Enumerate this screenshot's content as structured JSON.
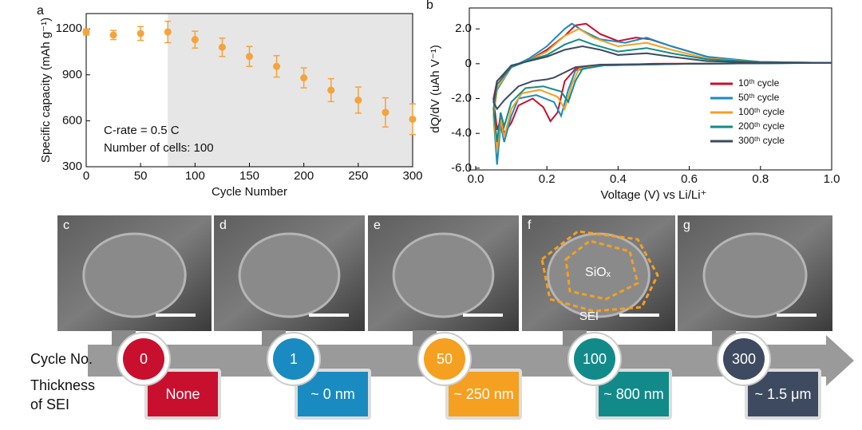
{
  "chart_data": [
    {
      "type": "scatter",
      "panel": "a",
      "xlabel": "Cycle Number",
      "ylabel": "Specific capacity (mAh g⁻¹)",
      "annotations": [
        "C-rate = 0.5 C",
        "Number of cells: 100"
      ],
      "x": [
        0,
        25,
        50,
        75,
        100,
        125,
        150,
        175,
        200,
        225,
        250,
        275,
        300
      ],
      "values": [
        1180,
        1160,
        1170,
        1180,
        1130,
        1080,
        1020,
        955,
        880,
        800,
        735,
        655,
        610
      ],
      "errors": [
        20,
        30,
        45,
        70,
        55,
        60,
        65,
        70,
        65,
        75,
        85,
        95,
        100
      ],
      "color": "#f5a33a",
      "shade_from": 75,
      "xlim": [
        0,
        300
      ],
      "xticks": [
        0,
        50,
        100,
        150,
        200,
        250,
        300
      ],
      "ylim": [
        300,
        1300
      ],
      "yticks": [
        300,
        600,
        900,
        1200
      ]
    },
    {
      "type": "line",
      "panel": "b",
      "xlabel": "Voltage (V) vs Li/Li⁺",
      "ylabel": "dQ/dV (uAh V⁻¹)",
      "xlim": [
        0,
        1.0
      ],
      "xticks": [
        {
          "value": 0,
          "label": "0.0"
        },
        0.2,
        0.4,
        0.6,
        0.8,
        {
          "value": 1.0,
          "label": "1.0"
        }
      ],
      "ylim": [
        -6.1,
        3.2
      ],
      "yticks": [
        {
          "value": 2,
          "label": "2.0"
        },
        0,
        {
          "value": -2,
          "label": "-2.0"
        },
        {
          "value": -4,
          "label": "-4.0"
        },
        {
          "value": -6,
          "label": "-6.0"
        }
      ],
      "series": [
        {
          "name": "10ᵗʰ cycle",
          "color": "#c8102e",
          "x": [
            0.76,
            0.5,
            0.35,
            0.28,
            0.25,
            0.23,
            0.21,
            0.19,
            0.16,
            0.12,
            0.1,
            0.08,
            0.07,
            0.06,
            0.05,
            0.06,
            0.1,
            0.15,
            0.2,
            0.25,
            0.28,
            0.31,
            0.35,
            0.4,
            0.45,
            0.49,
            0.55,
            0.65,
            0.76
          ],
          "values": [
            0.02,
            0,
            -0.1,
            -0.3,
            -1.0,
            -2.8,
            -3.3,
            -2.5,
            -2.0,
            -2.4,
            -3.4,
            -4.0,
            -3.2,
            -3.8,
            -2.0,
            -1.0,
            -0.2,
            0.2,
            0.8,
            1.6,
            2.2,
            2.3,
            1.7,
            1.3,
            1.5,
            1.4,
            1.0,
            0.4,
            0.05
          ]
        },
        {
          "name": "50ᵗʰ cycle",
          "color": "#1a8bc0",
          "x": [
            1.0,
            0.6,
            0.35,
            0.28,
            0.26,
            0.24,
            0.22,
            0.17,
            0.12,
            0.1,
            0.08,
            0.07,
            0.06,
            0.05,
            0.06,
            0.1,
            0.15,
            0.2,
            0.25,
            0.27,
            0.3,
            0.35,
            0.42,
            0.48,
            0.55,
            0.65,
            0.8,
            1.0
          ],
          "values": [
            0.05,
            0,
            -0.1,
            -0.4,
            -1.5,
            -3.0,
            -2.2,
            -1.8,
            -2.0,
            -3.0,
            -4.5,
            -3.5,
            -5.8,
            -3.0,
            -1.5,
            -0.2,
            0.3,
            1.0,
            2.0,
            2.3,
            1.9,
            1.4,
            1.2,
            1.5,
            1.0,
            0.4,
            0.1,
            0.05
          ]
        },
        {
          "name": "100ᵗʰ cycle",
          "color": "#f5a020",
          "x": [
            1.0,
            0.6,
            0.35,
            0.29,
            0.27,
            0.25,
            0.23,
            0.18,
            0.13,
            0.1,
            0.08,
            0.07,
            0.06,
            0.05,
            0.06,
            0.1,
            0.15,
            0.2,
            0.25,
            0.29,
            0.33,
            0.4,
            0.48,
            0.55,
            0.65,
            0.8,
            1.0
          ],
          "values": [
            0.05,
            0,
            -0.1,
            -0.3,
            -1.2,
            -2.6,
            -1.9,
            -1.5,
            -1.7,
            -2.6,
            -4.2,
            -3.2,
            -5.0,
            -3.0,
            -1.4,
            -0.2,
            0.2,
            0.7,
            1.6,
            2.0,
            1.5,
            1.0,
            1.2,
            0.8,
            0.3,
            0.1,
            0.05
          ]
        },
        {
          "name": "200ᵗʰ cycle",
          "color": "#138a8a",
          "x": [
            1.0,
            0.6,
            0.36,
            0.3,
            0.28,
            0.26,
            0.24,
            0.19,
            0.14,
            0.1,
            0.08,
            0.07,
            0.06,
            0.05,
            0.06,
            0.1,
            0.15,
            0.2,
            0.25,
            0.29,
            0.33,
            0.4,
            0.48,
            0.55,
            0.65,
            0.8,
            1.0
          ],
          "values": [
            0.05,
            0,
            -0.1,
            -0.3,
            -1.0,
            -2.2,
            -1.6,
            -1.3,
            -1.4,
            -2.2,
            -3.6,
            -2.8,
            -4.5,
            -2.6,
            -1.2,
            -0.2,
            0.2,
            0.5,
            1.1,
            1.4,
            1.1,
            0.7,
            0.9,
            0.6,
            0.25,
            0.1,
            0.05
          ]
        },
        {
          "name": "300ᵗʰ cycle",
          "color": "#3d4a60",
          "x": [
            1.0,
            0.6,
            0.35,
            0.28,
            0.25,
            0.22,
            0.2,
            0.16,
            0.12,
            0.1,
            0.08,
            0.06,
            0.05,
            0.06,
            0.1,
            0.15,
            0.2,
            0.25,
            0.3,
            0.35,
            0.4,
            0.48,
            0.55,
            0.65,
            0.8,
            1.0
          ],
          "values": [
            0.05,
            0,
            -0.05,
            -0.2,
            -0.5,
            -0.8,
            -0.9,
            -1.0,
            -1.3,
            -1.7,
            -2.1,
            -2.6,
            -2.2,
            -1.0,
            -0.1,
            0.15,
            0.4,
            0.8,
            1.0,
            0.8,
            0.5,
            0.6,
            0.4,
            0.15,
            0.05,
            0.05
          ]
        }
      ]
    }
  ],
  "images": [
    {
      "label": "c"
    },
    {
      "label": "d"
    },
    {
      "label": "e"
    },
    {
      "label": "f",
      "core": "SiOₓ",
      "shell": "SEI"
    },
    {
      "label": "g"
    }
  ],
  "timeline": {
    "row1": "Cycle No.",
    "row2": [
      "Thickness",
      "of SEI"
    ],
    "stages": [
      {
        "cycle": 0,
        "thickness": "None",
        "color": "#c8102e"
      },
      {
        "cycle": 1,
        "thickness": "~ 0 nm",
        "color": "#1a8bc0"
      },
      {
        "cycle": 50,
        "thickness": "~ 250 nm",
        "color": "#f5a020"
      },
      {
        "cycle": 100,
        "thickness": "~ 800 nm",
        "color": "#138a8a"
      },
      {
        "cycle": 300,
        "thickness": "~ 1.5 μm",
        "color": "#3d4a60"
      }
    ]
  }
}
